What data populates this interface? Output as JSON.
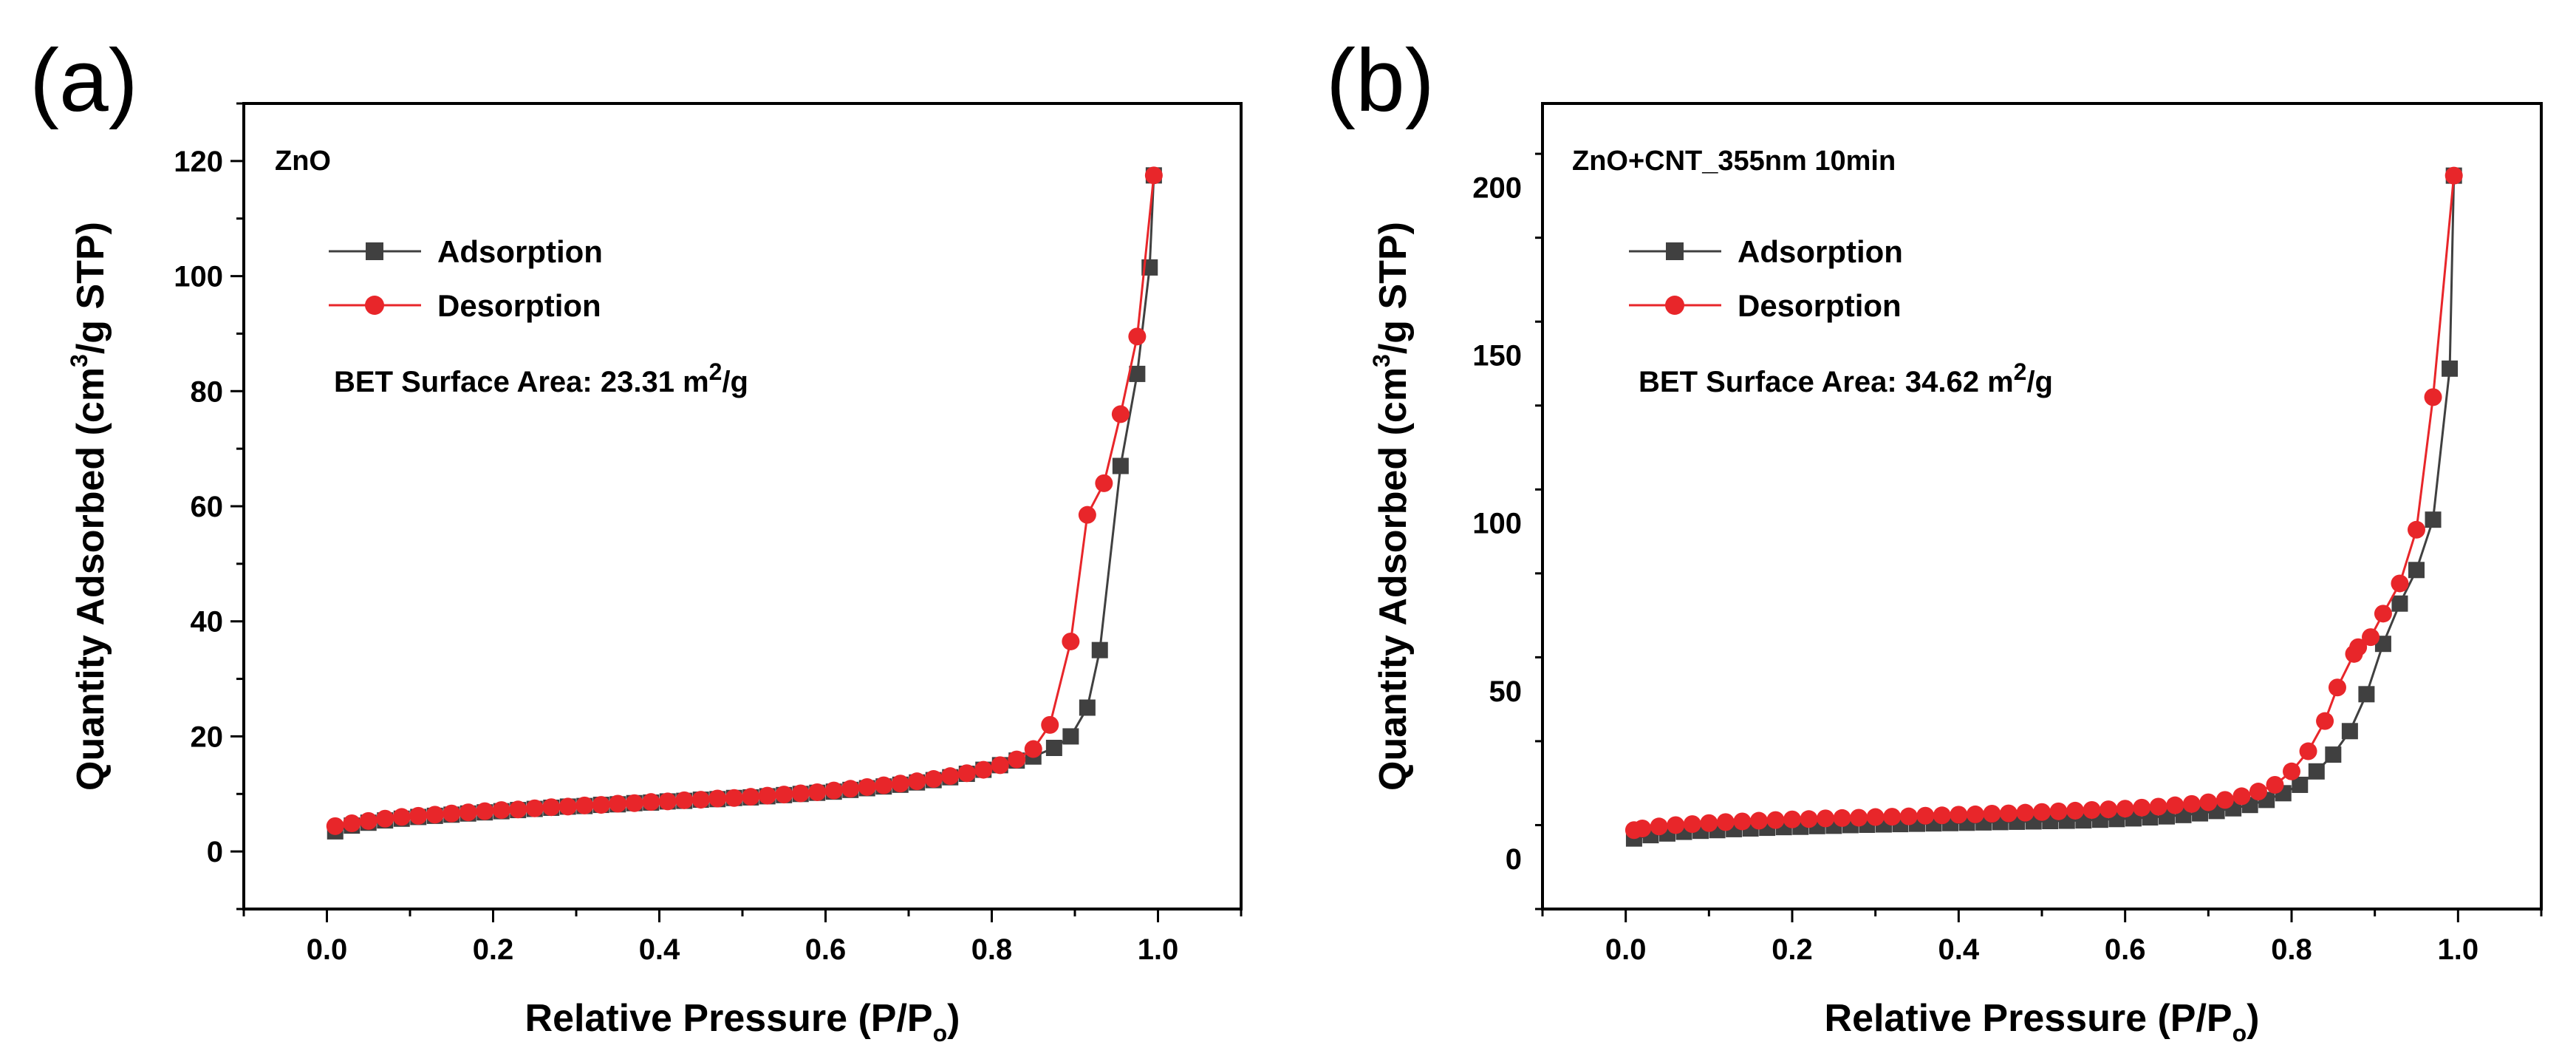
{
  "chart_data": [
    {
      "type": "line",
      "panel_label": "(a)",
      "sample_label": "ZnO",
      "xlabel_main": "Relative Pressure (P/P",
      "xlabel_sub": "o",
      "xlabel_close": ")",
      "ylabel_prefix": "Quantity Adsorbed (cm",
      "ylabel_sup": "3",
      "ylabel_suffix": "/g STP)",
      "bet_text": "BET Surface Area: 23.31 m",
      "bet_sup": "2",
      "bet_unit": "/g",
      "xlim": [
        -0.1,
        1.1
      ],
      "ylim": [
        -10,
        130
      ],
      "xticks": [
        0.0,
        0.2,
        0.4,
        0.6,
        0.8,
        1.0
      ],
      "xtick_labels": [
        "0.0",
        "0.2",
        "0.4",
        "0.6",
        "0.8",
        "1.0"
      ],
      "yticks": [
        0,
        20,
        40,
        60,
        80,
        100,
        120
      ],
      "ytick_labels": [
        "0",
        "20",
        "40",
        "60",
        "80",
        "100",
        "120"
      ],
      "legend_position": "top-left",
      "series": [
        {
          "name": "Adsorption",
          "color": "#404040",
          "marker": "square",
          "x": [
            0.01,
            0.03,
            0.05,
            0.07,
            0.09,
            0.11,
            0.13,
            0.15,
            0.17,
            0.19,
            0.21,
            0.23,
            0.25,
            0.27,
            0.29,
            0.31,
            0.33,
            0.35,
            0.37,
            0.39,
            0.41,
            0.43,
            0.45,
            0.47,
            0.49,
            0.51,
            0.53,
            0.55,
            0.57,
            0.59,
            0.61,
            0.63,
            0.65,
            0.67,
            0.69,
            0.71,
            0.73,
            0.75,
            0.77,
            0.79,
            0.81,
            0.83,
            0.85,
            0.875,
            0.895,
            0.915,
            0.93,
            0.955,
            0.975,
            0.99,
            0.995
          ],
          "y": [
            3.5,
            4.5,
            5.0,
            5.4,
            5.7,
            6.0,
            6.2,
            6.4,
            6.6,
            6.8,
            7.0,
            7.2,
            7.4,
            7.6,
            7.8,
            7.9,
            8.1,
            8.2,
            8.4,
            8.5,
            8.7,
            8.8,
            9.0,
            9.1,
            9.3,
            9.4,
            9.6,
            9.8,
            10.0,
            10.2,
            10.4,
            10.7,
            11.0,
            11.3,
            11.6,
            12.0,
            12.4,
            12.9,
            13.5,
            14.2,
            15.0,
            15.8,
            16.5,
            18.0,
            20.0,
            25.0,
            35.0,
            67.0,
            83.0,
            101.5,
            117.5
          ]
        },
        {
          "name": "Desorption",
          "color": "#e8262a",
          "marker": "circle",
          "x": [
            0.995,
            0.975,
            0.955,
            0.935,
            0.915,
            0.895,
            0.87,
            0.85,
            0.83,
            0.81,
            0.79,
            0.77,
            0.75,
            0.73,
            0.71,
            0.69,
            0.67,
            0.65,
            0.63,
            0.61,
            0.59,
            0.57,
            0.55,
            0.53,
            0.51,
            0.49,
            0.47,
            0.45,
            0.43,
            0.41,
            0.39,
            0.37,
            0.35,
            0.33,
            0.31,
            0.29,
            0.27,
            0.25,
            0.23,
            0.21,
            0.19,
            0.17,
            0.15,
            0.13,
            0.11,
            0.09,
            0.07,
            0.05,
            0.03,
            0.01
          ],
          "y": [
            117.5,
            89.5,
            76.0,
            64.0,
            58.5,
            36.5,
            22.0,
            17.8,
            16.0,
            15.0,
            14.2,
            13.6,
            13.1,
            12.6,
            12.2,
            11.8,
            11.5,
            11.2,
            10.9,
            10.6,
            10.3,
            10.1,
            9.9,
            9.7,
            9.5,
            9.3,
            9.2,
            9.0,
            8.9,
            8.7,
            8.6,
            8.4,
            8.3,
            8.1,
            8.0,
            7.8,
            7.7,
            7.5,
            7.3,
            7.2,
            7.0,
            6.8,
            6.6,
            6.4,
            6.2,
            6.0,
            5.7,
            5.3,
            4.9,
            4.4
          ]
        }
      ]
    },
    {
      "type": "line",
      "panel_label": "(b)",
      "sample_label": "ZnO+CNT_355nm 10min",
      "xlabel_main": "Relative Pressure (P/P",
      "xlabel_sub": "o",
      "xlabel_close": ")",
      "ylabel_prefix": "Quantity Adsorbed (cm",
      "ylabel_sup": "3",
      "ylabel_suffix": "/g STP)",
      "bet_text": "BET Surface Area: 34.62 m",
      "bet_sup": "2",
      "bet_unit": "/g",
      "xlim": [
        -0.1,
        1.1
      ],
      "ylim": [
        -15,
        225
      ],
      "xticks": [
        0.0,
        0.2,
        0.4,
        0.6,
        0.8,
        1.0
      ],
      "xtick_labels": [
        "0.0",
        "0.2",
        "0.4",
        "0.6",
        "0.8",
        "1.0"
      ],
      "yticks": [
        0,
        50,
        100,
        150,
        200
      ],
      "ytick_labels": [
        "0",
        "50",
        "100",
        "150",
        "200"
      ],
      "legend_position": "top-left",
      "series": [
        {
          "name": "Adsorption",
          "color": "#404040",
          "marker": "square",
          "x": [
            0.01,
            0.03,
            0.05,
            0.07,
            0.09,
            0.11,
            0.13,
            0.15,
            0.17,
            0.19,
            0.21,
            0.23,
            0.25,
            0.27,
            0.29,
            0.31,
            0.33,
            0.35,
            0.37,
            0.39,
            0.41,
            0.43,
            0.45,
            0.47,
            0.49,
            0.51,
            0.53,
            0.55,
            0.57,
            0.59,
            0.61,
            0.63,
            0.65,
            0.67,
            0.69,
            0.71,
            0.73,
            0.75,
            0.77,
            0.79,
            0.81,
            0.83,
            0.85,
            0.87,
            0.89,
            0.91,
            0.93,
            0.95,
            0.97,
            0.99,
            0.995
          ],
          "y": [
            6.0,
            7.0,
            7.5,
            8.0,
            8.3,
            8.5,
            8.8,
            9.0,
            9.2,
            9.4,
            9.5,
            9.7,
            9.8,
            10.0,
            10.1,
            10.2,
            10.3,
            10.4,
            10.5,
            10.6,
            10.7,
            10.8,
            10.9,
            11.0,
            11.1,
            11.2,
            11.3,
            11.4,
            11.6,
            11.8,
            12.0,
            12.3,
            12.6,
            13.0,
            13.5,
            14.2,
            15.0,
            16.0,
            17.5,
            19.5,
            22.0,
            26.0,
            31.0,
            38.0,
            49.0,
            64.0,
            76.0,
            86.0,
            101.0,
            146.0,
            203.5
          ]
        },
        {
          "name": "Desorption",
          "color": "#e8262a",
          "marker": "circle",
          "x": [
            0.995,
            0.97,
            0.95,
            0.93,
            0.91,
            0.895,
            0.88,
            0.875,
            0.855,
            0.84,
            0.82,
            0.8,
            0.78,
            0.76,
            0.74,
            0.72,
            0.7,
            0.68,
            0.66,
            0.64,
            0.62,
            0.6,
            0.58,
            0.56,
            0.54,
            0.52,
            0.5,
            0.48,
            0.46,
            0.44,
            0.42,
            0.4,
            0.38,
            0.36,
            0.34,
            0.32,
            0.3,
            0.28,
            0.26,
            0.24,
            0.22,
            0.2,
            0.18,
            0.16,
            0.14,
            0.12,
            0.1,
            0.08,
            0.06,
            0.04,
            0.02,
            0.01
          ],
          "y": [
            203.5,
            137.5,
            98.0,
            82.0,
            73.0,
            66.0,
            63.0,
            61.0,
            51.0,
            41.0,
            32.0,
            26.0,
            22.0,
            20.0,
            18.6,
            17.5,
            16.8,
            16.3,
            15.9,
            15.5,
            15.2,
            14.9,
            14.7,
            14.5,
            14.3,
            14.1,
            13.9,
            13.7,
            13.5,
            13.4,
            13.2,
            13.1,
            12.9,
            12.8,
            12.6,
            12.5,
            12.4,
            12.2,
            12.1,
            12.0,
            11.8,
            11.7,
            11.5,
            11.3,
            11.1,
            10.9,
            10.6,
            10.3,
            10.0,
            9.6,
            9.0,
            8.5
          ]
        }
      ]
    }
  ]
}
